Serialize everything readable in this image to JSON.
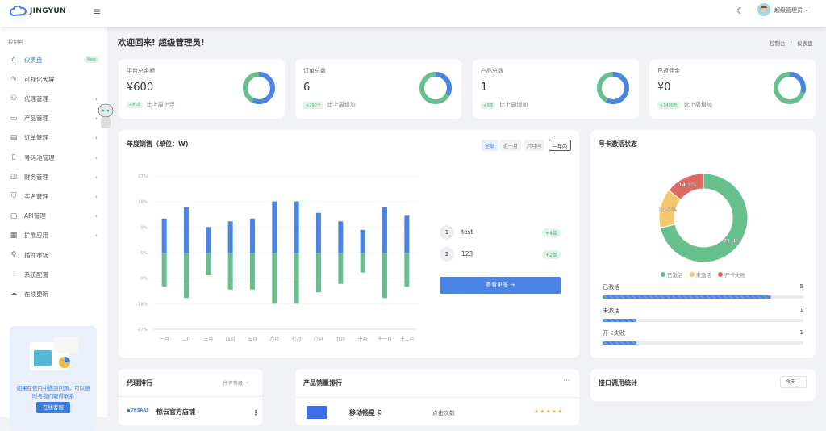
{
  "header": {
    "brand": "JINGYUN",
    "menu_icon": "hamburger-icon",
    "theme_icon": "moon-icon",
    "user_name": "超级管理员"
  },
  "sidebar": {
    "section": "控制台",
    "items": [
      {
        "label": "仪表盘",
        "icon": "home-icon",
        "badge": "New",
        "active": true
      },
      {
        "label": "可视化大屏",
        "icon": "activity-icon"
      },
      {
        "label": "代理管理",
        "icon": "users-icon",
        "has_children": true
      },
      {
        "label": "产品管理",
        "icon": "archive-icon",
        "has_children": true
      },
      {
        "label": "订单管理",
        "icon": "file-icon",
        "has_children": true
      },
      {
        "label": "号码池管理",
        "icon": "phone-icon",
        "has_children": true
      },
      {
        "label": "财务管理",
        "icon": "briefcase-icon",
        "has_children": true
      },
      {
        "label": "实名管理",
        "icon": "shield-icon",
        "has_children": true
      },
      {
        "label": "API管理",
        "icon": "monitor-icon",
        "has_children": true
      },
      {
        "label": "扩展应用",
        "icon": "grid-icon",
        "has_children": true
      },
      {
        "label": "插件市场",
        "icon": "wrench-icon"
      },
      {
        "label": "系统配置",
        "icon": "sliders-icon"
      },
      {
        "label": "在线更新",
        "icon": "cloud-icon"
      }
    ],
    "help_text": "如果在使用中遇到问题，可以随时与我们取得联系",
    "help_button": "在线客服"
  },
  "page": {
    "welcome": "欢迎回来! 超级管理员!",
    "breadcrumb": [
      "控制台",
      "仪表盘"
    ]
  },
  "stats": [
    {
      "title": "平台总金额",
      "value": "¥600",
      "badge": "+¥10",
      "compare": "比上周上浮",
      "ring_fraction": 0.57
    },
    {
      "title": "订单总数",
      "value": "6",
      "badge": "+290个",
      "compare": "比上周增加",
      "ring_fraction": 0.33
    },
    {
      "title": "产品总数",
      "value": "1",
      "badge": "+3款",
      "compare": "比上周增加",
      "ring_fraction": 0.57
    },
    {
      "title": "已返佣金",
      "value": "¥0",
      "badge": "+1400元",
      "compare": "比上周增加",
      "ring_fraction": 0.3
    }
  ],
  "colors": {
    "blue": "#4a84e4",
    "green": "#68bf8e",
    "yellow": "#f5c96a",
    "red": "#de6a62"
  },
  "sales": {
    "title": "年度销售（单位：W)",
    "filters": [
      "全部",
      "近一月",
      "六月内",
      "一年内"
    ],
    "active_filter": 0,
    "ranking": [
      {
        "rank": "1",
        "name": "test",
        "tag": "+4单"
      },
      {
        "rank": "2",
        "name": "123",
        "tag": "+2单"
      }
    ],
    "more_button": "查看更多 →"
  },
  "chart_data": {
    "type": "bar",
    "categories": [
      "一月",
      "二月",
      "三月",
      "四月",
      "五月",
      "六月",
      "七月",
      "八月",
      "九月",
      "十月",
      "十一月",
      "十二月"
    ],
    "series": [
      {
        "color": "#4a84e4",
        "values": [
          12,
          16,
          9,
          11,
          12,
          18,
          18,
          14,
          11,
          8,
          16,
          13
        ]
      },
      {
        "color": "#68bf8e",
        "values": [
          -12,
          -16,
          -8,
          -13,
          -13,
          -18,
          -18,
          -14,
          -11,
          -7,
          -16,
          -12
        ]
      }
    ],
    "yticks": [
      "27%",
      "18%",
      "9%",
      "0%",
      "-9%",
      "-18%",
      "-27%"
    ],
    "ylim": [
      -27,
      27
    ],
    "grid": true
  },
  "card_status": {
    "title": "号卡激活状态",
    "pie": [
      {
        "label": "已激活",
        "value": 5,
        "percent": "71.4%",
        "color": "#68bf8e"
      },
      {
        "label": "未激活",
        "value": 1,
        "percent": "14.3%",
        "color": "#f5c96a"
      },
      {
        "label": "开卡失败",
        "value": 1,
        "percent": "14.3%",
        "color": "#de6a62"
      }
    ],
    "rows": [
      {
        "label": "已激活",
        "value": "5",
        "fraction": 0.84
      },
      {
        "label": "未激活",
        "value": "1",
        "fraction": 0.17
      },
      {
        "label": "开卡失败",
        "value": "1",
        "fraction": 0.17
      }
    ]
  },
  "agent_rank": {
    "title": "代理排行",
    "filter": "所有等级",
    "first_name": "惊云官方店铺"
  },
  "product_rank": {
    "title": "产品销量排行",
    "first_name": "移动畅星卡",
    "first_metric": "点击次数",
    "stars": 5
  },
  "api_stats": {
    "title": "接口调用统计",
    "filter": "今天"
  }
}
